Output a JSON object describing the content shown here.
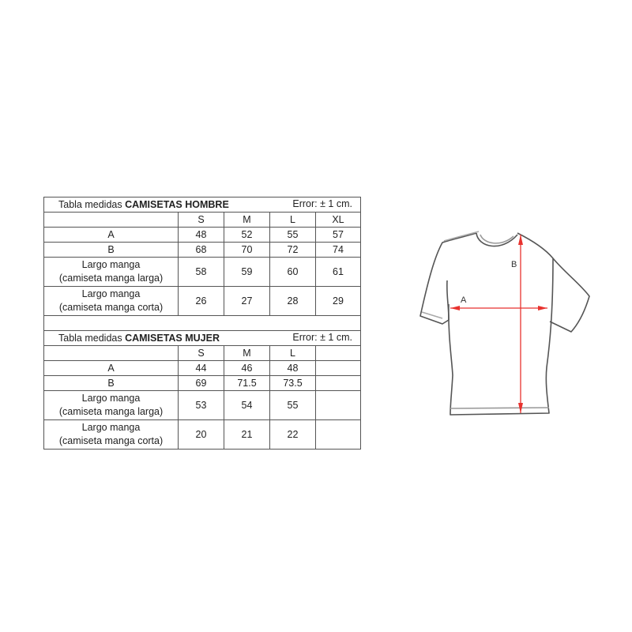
{
  "men": {
    "title_prefix": "Tabla medidas ",
    "title_bold": "CAMISETAS HOMBRE",
    "error": "Error: ± 1 cm.",
    "sizes": [
      "S",
      "M",
      "L",
      "XL"
    ],
    "rows": [
      {
        "label1": "A",
        "label2": "",
        "values": [
          "48",
          "52",
          "55",
          "57"
        ]
      },
      {
        "label1": "B",
        "label2": "",
        "values": [
          "68",
          "70",
          "72",
          "74"
        ]
      },
      {
        "label1": "Largo manga",
        "label2": "(camiseta manga larga)",
        "values": [
          "58",
          "59",
          "60",
          "61"
        ]
      },
      {
        "label1": "Largo manga",
        "label2": "(camiseta manga corta)",
        "values": [
          "26",
          "27",
          "28",
          "29"
        ]
      }
    ]
  },
  "women": {
    "title_prefix": "Tabla medidas ",
    "title_bold": "CAMISETAS MUJER",
    "error": "Error: ± 1 cm.",
    "sizes": [
      "S",
      "M",
      "L",
      ""
    ],
    "rows": [
      {
        "label1": "A",
        "label2": "",
        "values": [
          "44",
          "46",
          "48",
          ""
        ]
      },
      {
        "label1": "B",
        "label2": "",
        "values": [
          "69",
          "71.5",
          "73.5",
          ""
        ]
      },
      {
        "label1": "Largo manga",
        "label2": "(camiseta manga larga)",
        "values": [
          "53",
          "54",
          "55",
          ""
        ]
      },
      {
        "label1": "Largo manga",
        "label2": "(camiseta manga corta)",
        "values": [
          "20",
          "21",
          "22",
          ""
        ]
      }
    ]
  },
  "diagram": {
    "label_a": "A",
    "label_b": "B",
    "arrow_color": "#e8322e"
  }
}
